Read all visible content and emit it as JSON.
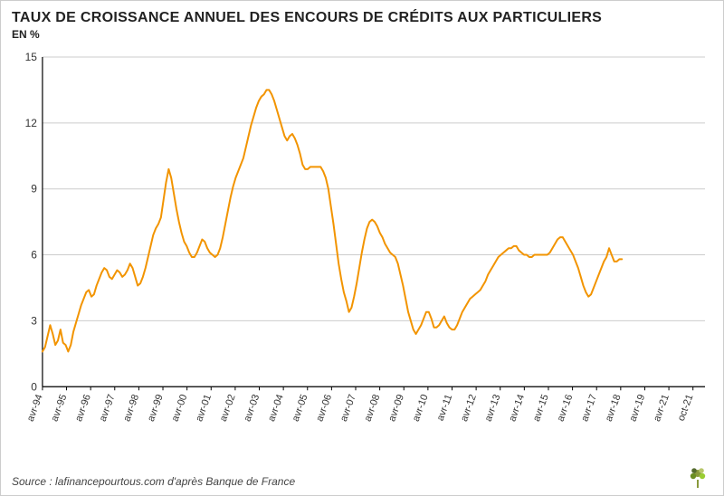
{
  "title": "TAUX DE CROISSANCE ANNUEL DES ENCOURS DE CRÉDITS AUX PARTICULIERS",
  "ylabel": "EN %",
  "source": "Source : lafinancepourtous.com d'après Banque de France",
  "chart": {
    "type": "line",
    "background_color": "#ffffff",
    "grid_color": "#cccccc",
    "axis_color": "#000000",
    "series_color": "#f29400",
    "line_width": 2,
    "title_fontsize": 16,
    "ylabel_fontsize": 12,
    "tick_fontsize": 12,
    "xtick_fontsize": 11,
    "ylim": [
      0,
      15
    ],
    "ytick_step": 3,
    "yticks": [
      0,
      3,
      6,
      9,
      12,
      15
    ],
    "xticks": [
      "avr-94",
      "avr-95",
      "avr-96",
      "avr-97",
      "avr-98",
      "avr-99",
      "avr-00",
      "avr-01",
      "avr-02",
      "avr-03",
      "avr-04",
      "avr-05",
      "avr-06",
      "avr-07",
      "avr-08",
      "avr-09",
      "avr-10",
      "avr-11",
      "avr-12",
      "avr-13",
      "avr-14",
      "avr-15",
      "avr-16",
      "avr-17",
      "avr-18",
      "avr-19",
      "avr-21",
      "oct-21"
    ],
    "x_range": [
      0,
      27.5
    ],
    "values": [
      1.6,
      1.8,
      2.3,
      2.8,
      2.4,
      1.9,
      2.1,
      2.6,
      2.0,
      1.9,
      1.6,
      1.9,
      2.5,
      2.9,
      3.3,
      3.7,
      4.0,
      4.3,
      4.4,
      4.1,
      4.2,
      4.6,
      4.9,
      5.2,
      5.4,
      5.3,
      5.0,
      4.9,
      5.1,
      5.3,
      5.2,
      5.0,
      5.1,
      5.3,
      5.6,
      5.4,
      5.0,
      4.6,
      4.7,
      5.0,
      5.4,
      5.9,
      6.4,
      6.9,
      7.2,
      7.4,
      7.7,
      8.5,
      9.3,
      9.9,
      9.5,
      8.8,
      8.1,
      7.5,
      7.0,
      6.6,
      6.4,
      6.1,
      5.9,
      5.9,
      6.1,
      6.4,
      6.7,
      6.6,
      6.3,
      6.1,
      6.0,
      5.9,
      6.0,
      6.3,
      6.8,
      7.4,
      8.0,
      8.6,
      9.1,
      9.5,
      9.8,
      10.1,
      10.4,
      10.9,
      11.4,
      11.9,
      12.3,
      12.7,
      13.0,
      13.2,
      13.3,
      13.5,
      13.5,
      13.3,
      13.0,
      12.6,
      12.2,
      11.8,
      11.4,
      11.2,
      11.4,
      11.5,
      11.3,
      11.0,
      10.6,
      10.1,
      9.9,
      9.9,
      10.0,
      10.0,
      10.0,
      10.0,
      10.0,
      9.8,
      9.5,
      9.0,
      8.2,
      7.4,
      6.5,
      5.6,
      4.9,
      4.3,
      3.9,
      3.4,
      3.6,
      4.1,
      4.7,
      5.4,
      6.1,
      6.7,
      7.2,
      7.5,
      7.6,
      7.5,
      7.3,
      7.0,
      6.8,
      6.5,
      6.3,
      6.1,
      6.0,
      5.9,
      5.6,
      5.1,
      4.6,
      4.0,
      3.4,
      3.0,
      2.6,
      2.4,
      2.6,
      2.8,
      3.1,
      3.4,
      3.4,
      3.1,
      2.7,
      2.7,
      2.8,
      3.0,
      3.2,
      2.9,
      2.7,
      2.6,
      2.6,
      2.8,
      3.1,
      3.4,
      3.6,
      3.8,
      4.0,
      4.1,
      4.2,
      4.3,
      4.4,
      4.6,
      4.8,
      5.1,
      5.3,
      5.5,
      5.7,
      5.9,
      6.0,
      6.1,
      6.2,
      6.3,
      6.3,
      6.4,
      6.4,
      6.2,
      6.1,
      6.0,
      6.0,
      5.9,
      5.9,
      6.0,
      6.0,
      6.0,
      6.0,
      6.0,
      6.0,
      6.1,
      6.3,
      6.5,
      6.7,
      6.8,
      6.8,
      6.6,
      6.4,
      6.2,
      6.0,
      5.7,
      5.4,
      5.0,
      4.6,
      4.3,
      4.1,
      4.2,
      4.5,
      4.8,
      5.1,
      5.4,
      5.7,
      5.9,
      6.3,
      6.0,
      5.7,
      5.7,
      5.8,
      5.8
    ],
    "x_start": 0,
    "x_step": 0.1069
  },
  "logo": {
    "name": "tree-logo",
    "trunk_color": "#8a9a3d",
    "leaf_colors": [
      "#8a9a3d",
      "#6b8e23",
      "#9acd32",
      "#556b2f",
      "#b8c66b"
    ]
  }
}
